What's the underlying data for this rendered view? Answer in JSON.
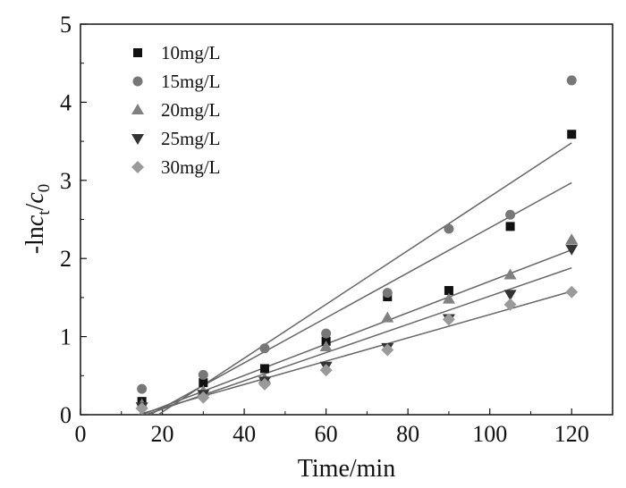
{
  "chart_data": {
    "type": "scatter",
    "xlabel": "Time/min",
    "ylabel_parts": [
      "-ln",
      "c",
      "t",
      "/",
      "c",
      "0"
    ],
    "xlim": [
      0,
      130
    ],
    "ylim": [
      0,
      5
    ],
    "x_ticks": [
      0,
      20,
      40,
      60,
      80,
      100,
      120
    ],
    "y_ticks": [
      0,
      1,
      2,
      3,
      4,
      5
    ],
    "grid": false,
    "legend_position": "top-left",
    "series": [
      {
        "name": "10mg/L",
        "marker": "square",
        "color": "#111111",
        "x": [
          15,
          30,
          45,
          60,
          75,
          90,
          105,
          120
        ],
        "y": [
          0.17,
          0.41,
          0.59,
          0.94,
          1.51,
          1.59,
          2.41,
          3.59
        ],
        "fit": {
          "x": [
            17,
            120
          ],
          "y": [
            0.0,
            2.97
          ]
        }
      },
      {
        "name": "15mg/L",
        "marker": "circle",
        "color": "#777777",
        "x": [
          15,
          30,
          45,
          60,
          75,
          90,
          105,
          120
        ],
        "y": [
          0.33,
          0.51,
          0.85,
          1.04,
          1.56,
          2.38,
          2.56,
          4.28
        ],
        "fit": {
          "x": [
            19,
            120
          ],
          "y": [
            0.0,
            3.48
          ]
        }
      },
      {
        "name": "20mg/L",
        "marker": "triangle-up",
        "color": "#808080",
        "x": [
          15,
          30,
          45,
          60,
          75,
          90,
          105,
          120
        ],
        "y": [
          0.13,
          0.3,
          0.46,
          0.87,
          1.24,
          1.48,
          1.79,
          2.24
        ],
        "fit": {
          "x": [
            15,
            120
          ],
          "y": [
            0.0,
            2.11
          ]
        }
      },
      {
        "name": "25mg/L",
        "marker": "triangle-down",
        "color": "#333333",
        "x": [
          15,
          30,
          45,
          60,
          75,
          90,
          105,
          120
        ],
        "y": [
          0.1,
          0.26,
          0.43,
          0.62,
          0.86,
          1.23,
          1.54,
          2.12
        ],
        "fit": {
          "x": [
            16,
            120
          ],
          "y": [
            0.0,
            1.88
          ]
        }
      },
      {
        "name": "30mg/L",
        "marker": "diamond",
        "color": "#9a9a9a",
        "x": [
          15,
          30,
          45,
          60,
          75,
          90,
          105,
          120
        ],
        "y": [
          0.08,
          0.22,
          0.39,
          0.57,
          0.83,
          1.22,
          1.41,
          1.57
        ],
        "fit": {
          "x": [
            14,
            120
          ],
          "y": [
            0.0,
            1.58
          ]
        }
      }
    ]
  }
}
